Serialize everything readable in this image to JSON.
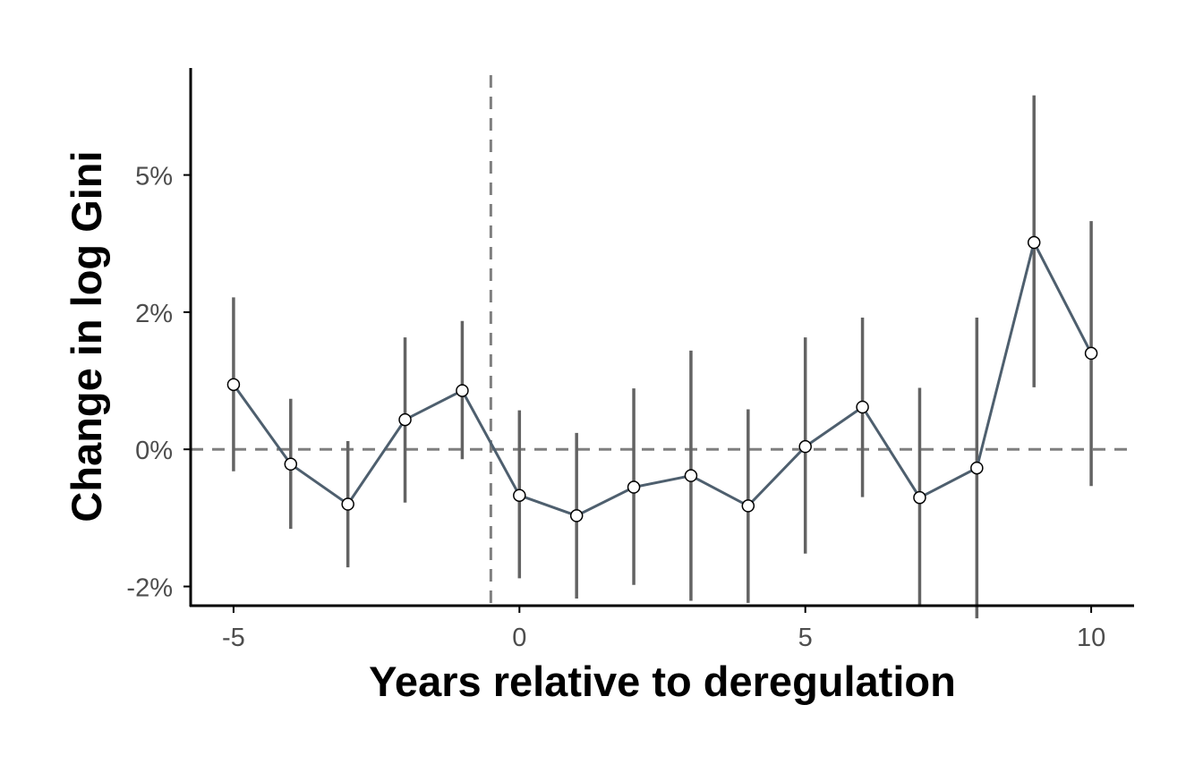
{
  "chart_data": {
    "type": "line",
    "title": "",
    "xlabel": "Years relative to deregulation",
    "ylabel": "Change in log Gini",
    "xlim": [
      -5.75,
      10.75
    ],
    "ylim": [
      -0.0285,
      0.0695
    ],
    "x_ticks": [
      -5,
      0,
      5,
      10
    ],
    "x_tick_labels": [
      "-5",
      "0",
      "5",
      "10"
    ],
    "y_ticks": [
      -0.025,
      0,
      0.025,
      0.05
    ],
    "y_tick_labels": [
      "-2%",
      "0%",
      "2%",
      "5%"
    ],
    "grid": false,
    "legend": "none",
    "reference_lines": {
      "horizontal_y": 0,
      "vertical_x": -0.5,
      "style": "dashed"
    },
    "series": [
      {
        "x": [
          -5,
          -4,
          -3,
          -2,
          -1,
          0,
          1,
          2,
          3,
          4,
          5,
          6,
          7,
          8,
          9,
          10
        ],
        "y": [
          0.0118,
          -0.0027,
          -0.01,
          0.0054,
          0.0107,
          -0.0084,
          -0.0121,
          -0.0069,
          -0.0048,
          -0.0103,
          0.0005,
          0.0077,
          -0.0088,
          -0.0034,
          0.0377,
          0.0175
        ],
        "ci_low": [
          -0.004,
          -0.0145,
          -0.0215,
          -0.0097,
          -0.0018,
          -0.0235,
          -0.0272,
          -0.0247,
          -0.0276,
          -0.028,
          -0.019,
          -0.0087,
          -0.0285,
          -0.0308,
          0.0113,
          -0.0067
        ],
        "ci_high": [
          0.0277,
          0.0092,
          0.0015,
          0.0204,
          0.0234,
          0.0071,
          0.003,
          0.0111,
          0.018,
          0.0073,
          0.0204,
          0.024,
          0.0112,
          0.024,
          0.0645,
          0.0416
        ]
      }
    ],
    "colors": {
      "line": "#4e5f6e",
      "error_bar": "#636363",
      "reference_line": "#7f7f7f",
      "axis": "#000000",
      "marker_fill": "#ffffff",
      "marker_stroke": "#000000"
    }
  }
}
